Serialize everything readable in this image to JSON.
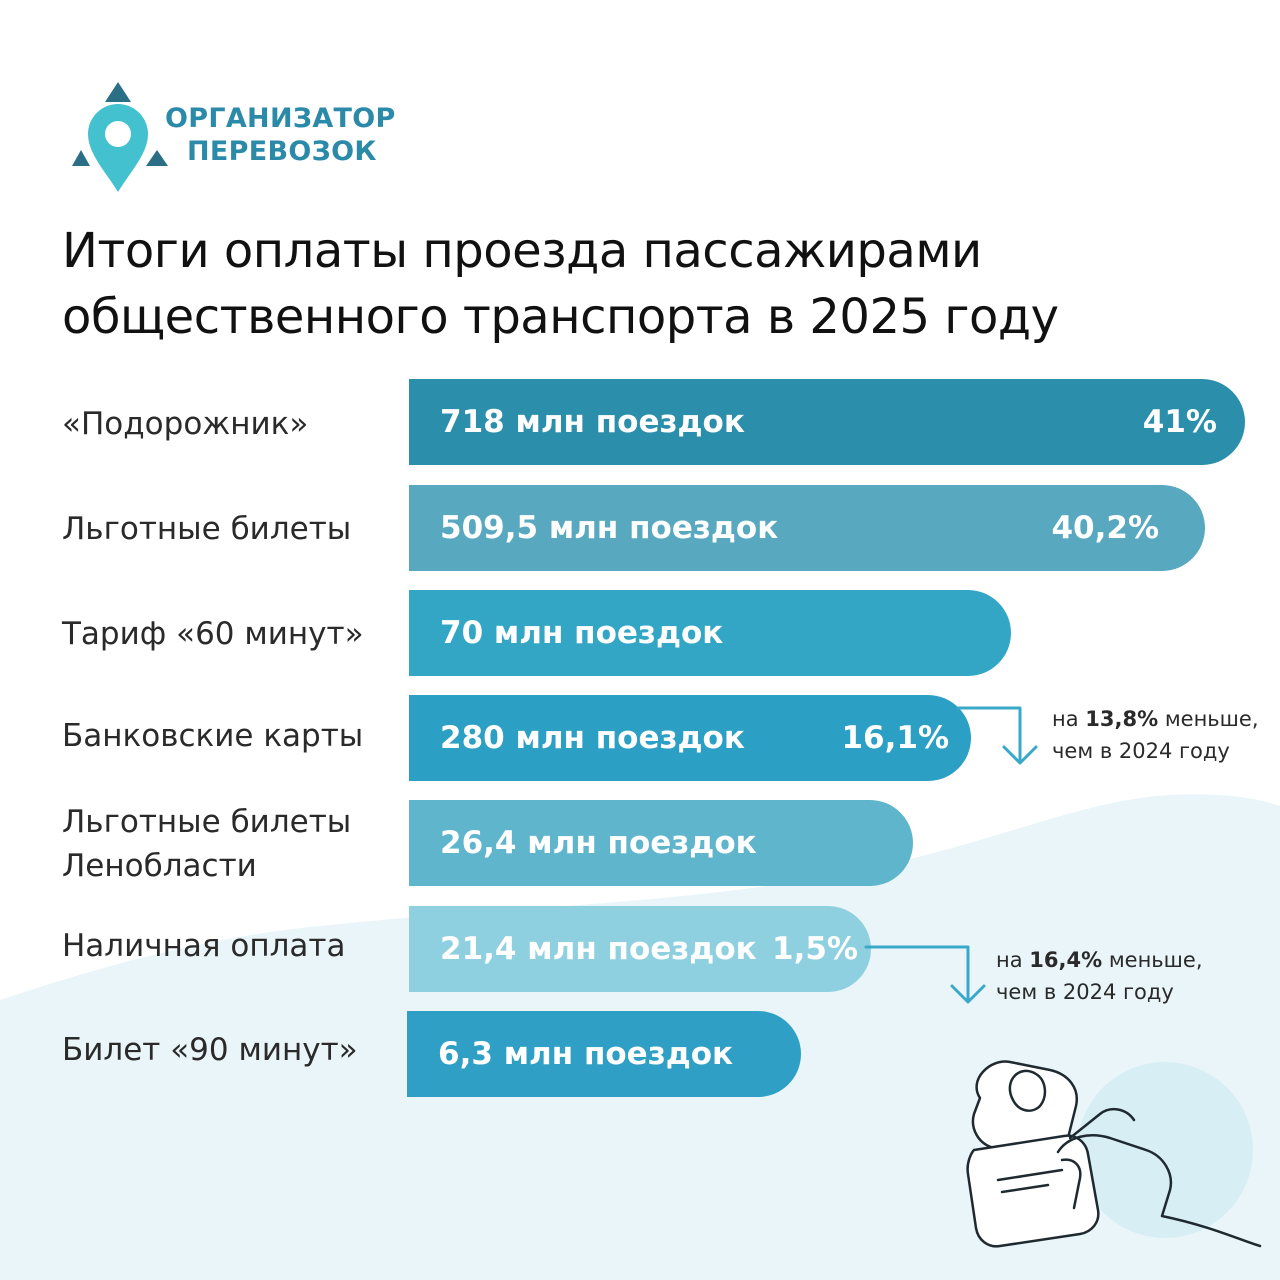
{
  "brand": {
    "name_line1": "ОРГАНИЗАТОР",
    "name_line2": "ПЕРЕВОЗОК",
    "color": "#2b8aa8",
    "icon": "map-pin-logo-icon"
  },
  "title": {
    "line1": "Итоги оплаты проезда пассажирами",
    "line2": "общественного транспорта в 2025 году"
  },
  "chart_data": {
    "type": "bar",
    "orientation": "horizontal",
    "unit": "млн поездок",
    "categories": [
      "«Подорожник»",
      "Льготные билеты",
      "Тариф «60 минут»",
      "Банковские карты",
      "Льготные билеты Ленобласти",
      "Наличная оплата",
      "Билет «90 минут»"
    ],
    "label_lines": [
      [
        "«Подорожник»"
      ],
      [
        "Льготные билеты"
      ],
      [
        "Тариф «60 минут»"
      ],
      [
        "Банковские карты"
      ],
      [
        "Льготные билеты",
        "Ленобласти"
      ],
      [
        "Наличная оплата"
      ],
      [
        "Билет «90 минут»"
      ]
    ],
    "values": [
      718,
      509.5,
      70,
      280,
      26.4,
      21.4,
      6.3
    ],
    "value_labels": [
      "718 млн поездок",
      "509,5 млн поездок",
      "70 млн поездок",
      "280 млн поездок",
      "26,4 млн поездок",
      "21,4 млн поездок",
      "6,3 млн поездок"
    ],
    "percent_labels": [
      "41%",
      "40,2%",
      "",
      "16,1%",
      "",
      "1,5%",
      ""
    ],
    "colors": [
      "#2b8fab",
      "#58a9bf",
      "#33a6c6",
      "#2b9fc4",
      "#5fb5cc",
      "#8fd0e0",
      "#2f9fc6"
    ],
    "annotations": [
      {
        "row": 3,
        "prefix": "на ",
        "value": "13,8%",
        "suffix": " меньше,",
        "line2": "чем в 2024 году"
      },
      {
        "row": 5,
        "prefix": "на ",
        "value": "16,4%",
        "suffix": " меньше,",
        "line2": "чем в 2024 году"
      }
    ]
  },
  "illustration": {
    "icon": "hand-holding-card-icon"
  },
  "colors": {
    "arrow": "#3aa9c9",
    "wave": "#eaf5f9"
  }
}
